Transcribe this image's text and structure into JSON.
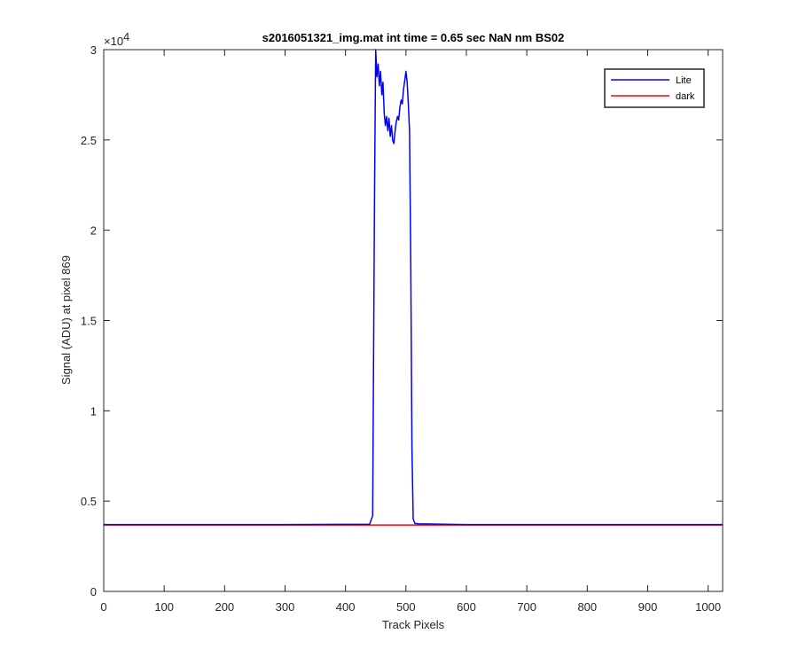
{
  "chart_data": {
    "type": "line",
    "title": "s2016051321_img.mat int time = 0.65 sec  NaN nm BS02",
    "xlabel": "Track Pixels",
    "ylabel": "Signal (ADU) at pixel 869",
    "y_exponent_label": "×10",
    "y_exponent_power": "4",
    "xlim": [
      0,
      1024
    ],
    "ylim": [
      0,
      30000
    ],
    "xticks": [
      0,
      100,
      200,
      300,
      400,
      500,
      600,
      700,
      800,
      900,
      1000
    ],
    "xtick_labels": [
      "0",
      "100",
      "200",
      "300",
      "400",
      "500",
      "600",
      "700",
      "800",
      "900",
      "1000"
    ],
    "yticks": [
      0,
      5000,
      10000,
      15000,
      20000,
      25000,
      30000
    ],
    "ytick_labels": [
      "0",
      "0.5",
      "1",
      "1.5",
      "2",
      "2.5",
      "3"
    ],
    "grid": false,
    "legend_position": "top-right",
    "series": [
      {
        "name": "Lite",
        "color": "#0000ff",
        "x": [
          0,
          100,
          200,
          300,
          400,
          440,
          445,
          448,
          450,
          452,
          454,
          456,
          458,
          460,
          462,
          464,
          466,
          468,
          470,
          472,
          474,
          476,
          478,
          480,
          482,
          484,
          486,
          488,
          490,
          492,
          494,
          496,
          498,
          500,
          502,
          504,
          506,
          508,
          510,
          512,
          515,
          520,
          600,
          700,
          800,
          900,
          1024
        ],
        "y": [
          3700,
          3700,
          3700,
          3700,
          3710,
          3720,
          4200,
          22000,
          30000,
          28500,
          29200,
          28000,
          28800,
          27500,
          28200,
          26500,
          25800,
          26300,
          25500,
          26200,
          25200,
          25800,
          25000,
          24800,
          25500,
          26000,
          26300,
          26100,
          26800,
          27200,
          27000,
          27800,
          28300,
          28800,
          28200,
          27000,
          25500,
          18000,
          8000,
          4000,
          3760,
          3740,
          3700,
          3700,
          3700,
          3700,
          3700
        ]
      },
      {
        "name": "dark",
        "color": "#ff0000",
        "x": [
          0,
          100,
          200,
          300,
          400,
          500,
          600,
          700,
          800,
          900,
          1024
        ],
        "y": [
          3680,
          3680,
          3680,
          3680,
          3680,
          3680,
          3680,
          3680,
          3680,
          3680,
          3680
        ]
      }
    ]
  }
}
